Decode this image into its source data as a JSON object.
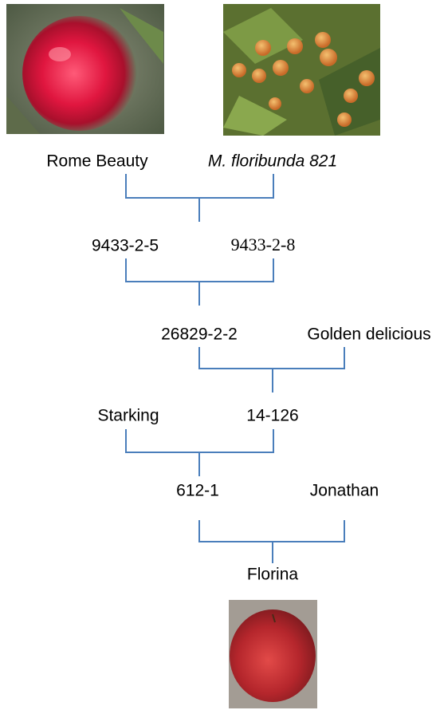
{
  "nodes": [
    {
      "label": "Rome Beauty"
    },
    {
      "label": "M. floribunda 821"
    },
    {
      "label": "9433-2-5"
    },
    {
      "label": "9433-2-8"
    },
    {
      "label": "26829-2-2"
    },
    {
      "label": "Golden delicious"
    },
    {
      "label": "Starking"
    },
    {
      "label": "14-126"
    },
    {
      "label": "612-1"
    },
    {
      "label": "Jonathan"
    },
    {
      "label": "Florina"
    }
  ]
}
